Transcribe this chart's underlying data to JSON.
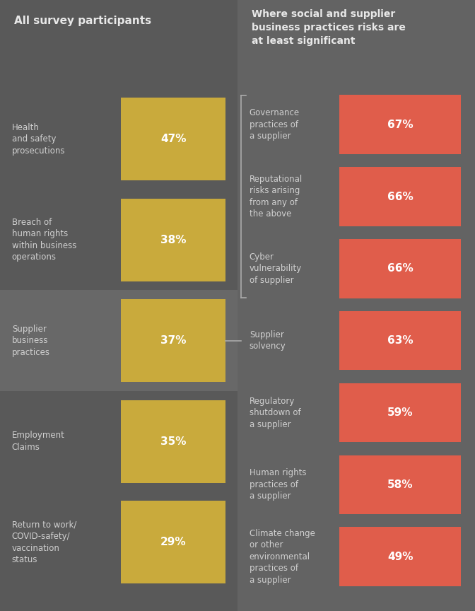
{
  "bg_color": "#595959",
  "right_panel_bg": "#636363",
  "highlight_row_bg": "#686868",
  "left_header": "All survey participants",
  "right_header": "Where social and supplier\nbusiness practices risks are\nat least significant",
  "header_text_color": "#e8e8e8",
  "left_bars": [
    {
      "label": "Health\nand safety\nprosecutions",
      "value": 47,
      "pct": "47%"
    },
    {
      "label": "Breach of\nhuman rights\nwithin business\noperations",
      "value": 38,
      "pct": "38%"
    },
    {
      "label": "Supplier\nbusiness\npractices",
      "value": 37,
      "pct": "37%",
      "highlight": true
    },
    {
      "label": "Employment\nClaims",
      "value": 35,
      "pct": "35%"
    },
    {
      "label": "Return to work/\nCOVID-safety/\nvaccination\nstatus",
      "value": 29,
      "pct": "29%"
    }
  ],
  "right_bars": [
    {
      "label": "Governance\npractices of\na supplier",
      "value": 67,
      "pct": "67%"
    },
    {
      "label": "Reputational\nrisks arising\nfrom any of\nthe above",
      "value": 66,
      "pct": "66%"
    },
    {
      "label": "Cyber\nvulnerability\nof supplier",
      "value": 66,
      "pct": "66%"
    },
    {
      "label": "Supplier\nsolvency",
      "value": 63,
      "pct": "63%"
    },
    {
      "label": "Regulatory\nshutdown of\na supplier",
      "value": 59,
      "pct": "59%"
    },
    {
      "label": "Human rights\npractices of\na supplier",
      "value": 58,
      "pct": "58%"
    },
    {
      "label": "Climate change\nor other\nenvironmental\npractices of\na supplier",
      "value": 49,
      "pct": "49%"
    }
  ],
  "left_bar_color": "#c9aa3c",
  "right_bar_color": "#e05d4b",
  "bar_text_color": "#ffffff",
  "label_text_color": "#d0d0d0",
  "fig_width": 6.72,
  "fig_height": 8.64,
  "dpi": 100
}
